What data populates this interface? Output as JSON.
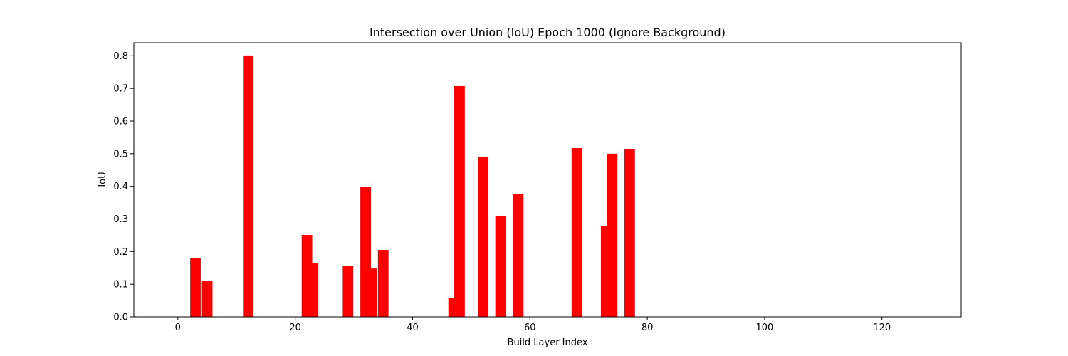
{
  "chart_data": {
    "type": "bar",
    "title": "Intersection over Union (IoU) Epoch 1000 (Ignore Background)",
    "xlabel": "Build Layer Index",
    "ylabel": "IoU",
    "xlim": [
      -7.5,
      133.5
    ],
    "ylim": [
      0,
      0.84
    ],
    "xticks": [
      0,
      20,
      40,
      60,
      80,
      100,
      120
    ],
    "yticks": [
      0.0,
      0.1,
      0.2,
      0.3,
      0.4,
      0.5,
      0.6,
      0.7,
      0.8
    ],
    "xtick_labels": [
      "0",
      "20",
      "40",
      "60",
      "80",
      "100",
      "120"
    ],
    "ytick_labels": [
      "0.0",
      "0.1",
      "0.2",
      "0.3",
      "0.4",
      "0.5",
      "0.6",
      "0.7",
      "0.8"
    ],
    "bar_color": "#ff0000",
    "grid": false,
    "x": [
      3,
      5,
      12,
      22,
      23,
      29,
      32,
      33,
      35,
      47,
      48,
      52,
      55,
      58,
      68,
      73,
      74,
      77
    ],
    "values": [
      0.181,
      0.111,
      0.801,
      0.251,
      0.165,
      0.157,
      0.399,
      0.148,
      0.205,
      0.058,
      0.707,
      0.491,
      0.308,
      0.377,
      0.517,
      0.277,
      0.5,
      0.515
    ]
  }
}
